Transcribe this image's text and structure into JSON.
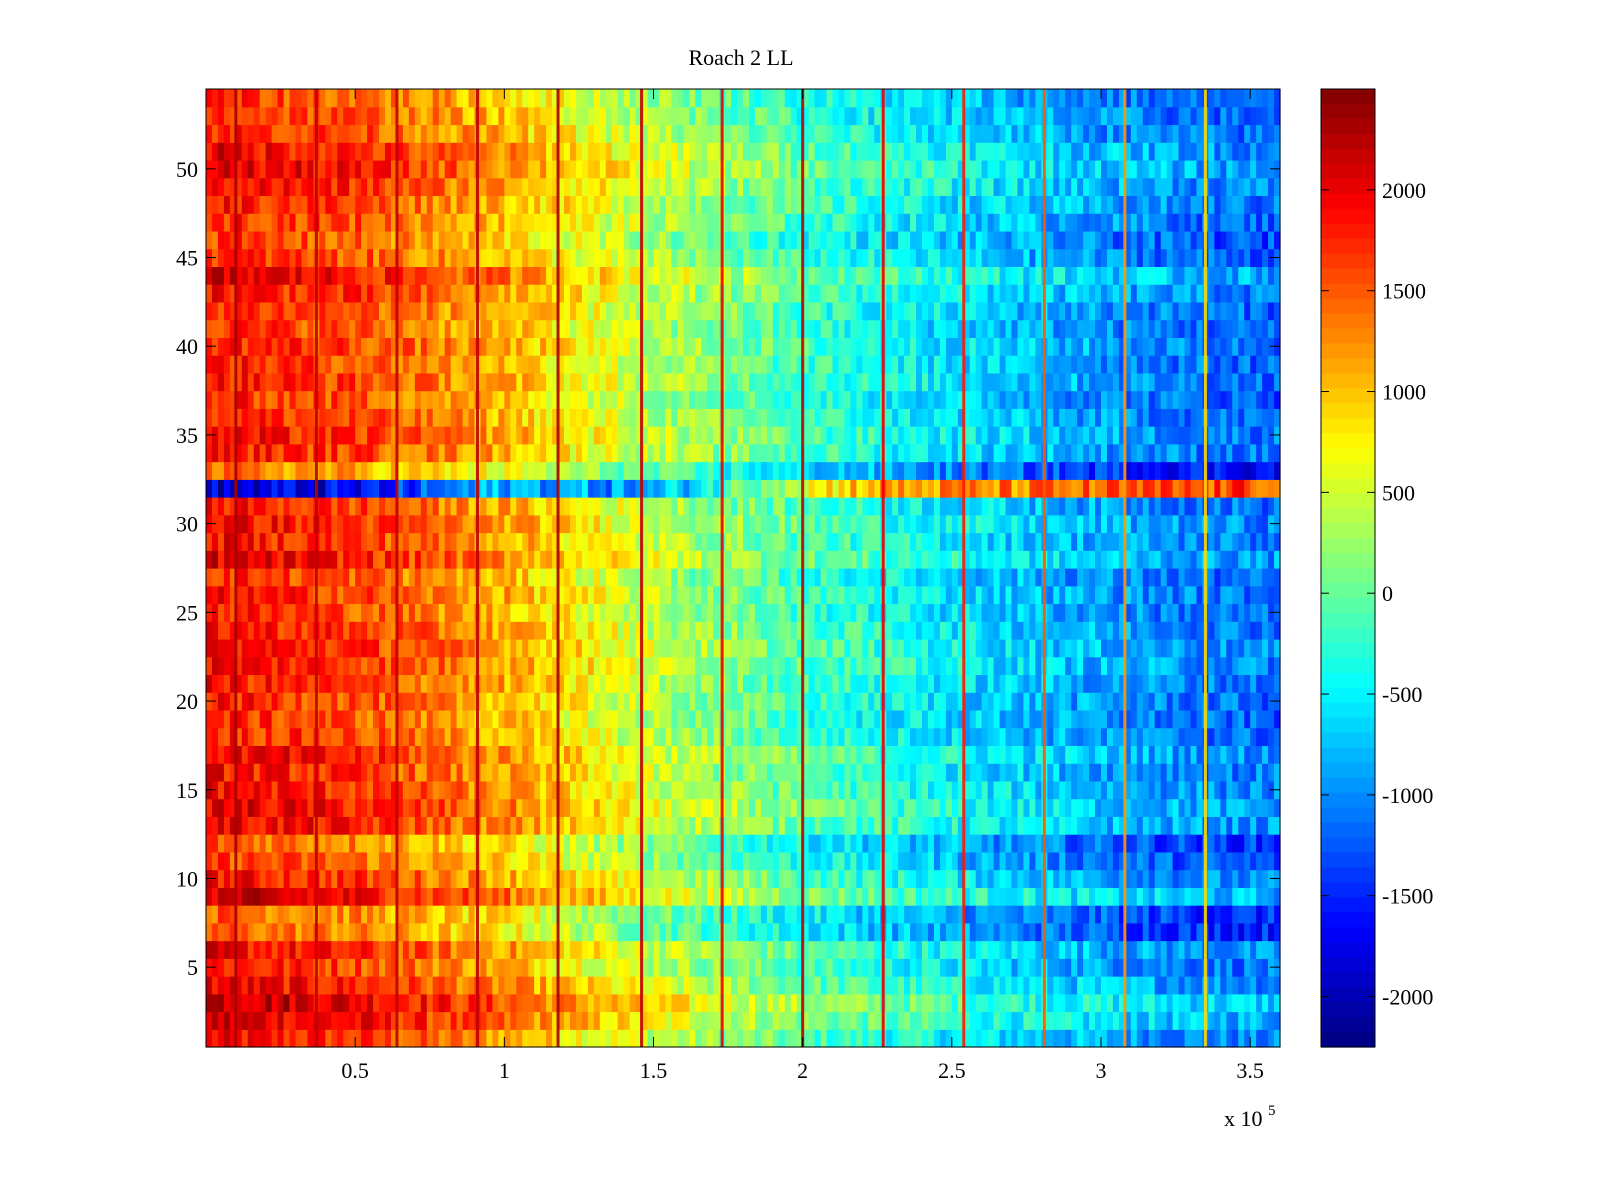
{
  "chart_data": {
    "type": "heatmap",
    "title": "Roach 2 LL",
    "xlabel": "",
    "ylabel": "",
    "x_exponent_label": "x 10",
    "x_exponent_power": "5",
    "xlim": [
      0,
      3.6
    ],
    "ylim": [
      0.5,
      54.5
    ],
    "x_ticks": [
      0.5,
      1,
      1.5,
      2,
      2.5,
      3,
      3.5
    ],
    "x_tick_labels": [
      "0.5",
      "1",
      "1.5",
      "2",
      "2.5",
      "3",
      "3.5"
    ],
    "y_ticks": [
      5,
      10,
      15,
      20,
      25,
      30,
      35,
      40,
      45,
      50
    ],
    "y_tick_labels": [
      "5",
      "10",
      "15",
      "20",
      "25",
      "30",
      "35",
      "40",
      "45",
      "50"
    ],
    "rows": 54,
    "colorbar": {
      "colormap": "jet",
      "clim": [
        -2250,
        2500
      ],
      "ticks": [
        2000,
        1500,
        1000,
        500,
        0,
        -500,
        -1000,
        -1500,
        -2000
      ],
      "tick_labels": [
        "2000",
        "1500",
        "1000",
        "500",
        "0",
        "-500",
        "-1000",
        "-1500",
        "-2000"
      ]
    },
    "trend": {
      "x": [
        0,
        0.5,
        1.0,
        1.5,
        2.0,
        2.5,
        3.0,
        3.3,
        3.6
      ],
      "value": [
        1650,
        1400,
        900,
        200,
        -350,
        -750,
        -1100,
        -1250,
        -1350
      ]
    },
    "row_offsets": {
      "1": 250,
      "2": 500,
      "3": 650,
      "4": 350,
      "5": 200,
      "6": 300,
      "7": -150,
      "8": -150,
      "9": 500,
      "10": 250,
      "11": 0,
      "12": -100,
      "13": 350,
      "14": 400,
      "15": 300,
      "16": 250,
      "17": 350,
      "18": 150,
      "19": 100,
      "20": 150,
      "21": 200,
      "22": 300,
      "23": 300,
      "24": 250,
      "25": 150,
      "26": 200,
      "27": 100,
      "28": 400,
      "29": 250,
      "30": 300,
      "31": 200,
      "33": -300,
      "34": 200,
      "35": 250,
      "36": 150,
      "37": 100,
      "38": 200,
      "39": 150,
      "40": 200,
      "41": 100,
      "42": 150,
      "43": 250,
      "44": 450,
      "45": 100,
      "46": 0,
      "47": 150,
      "48": 200,
      "49": 300,
      "50": 400,
      "51": 350,
      "52": 150,
      "53": 100,
      "54": 50
    },
    "anomalous_row": {
      "row": 32,
      "x": [
        0,
        0.5,
        1.0,
        1.5,
        1.9,
        2.2,
        2.8,
        3.6
      ],
      "value": [
        -1900,
        -1750,
        -800,
        -1000,
        400,
        1100,
        1300,
        1600
      ]
    },
    "vertical_stripes": {
      "x": [
        0.1,
        0.37,
        0.64,
        0.91,
        1.18,
        1.46,
        1.73,
        2.0,
        2.27,
        2.54,
        2.81,
        3.08,
        3.35
      ],
      "value": [
        2300,
        2200,
        2200,
        2200,
        2300,
        2200,
        2000,
        2200,
        2000,
        1800,
        1500,
        1200,
        900
      ]
    }
  }
}
